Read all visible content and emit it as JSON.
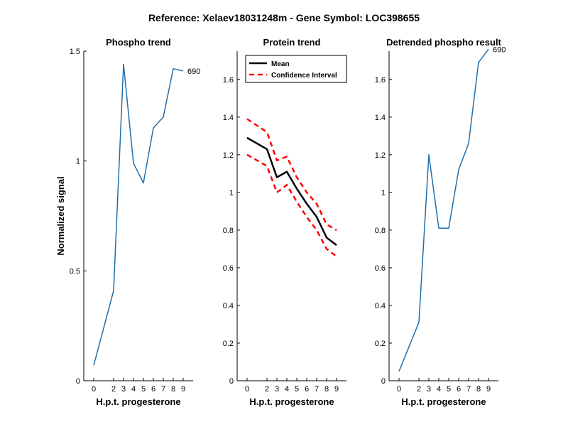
{
  "figure": {
    "title": "Reference:  Xelaev18031248m - Gene Symbol:  LOC398655"
  },
  "chart_data": [
    {
      "type": "line",
      "title": "Phospho trend",
      "xlabel": "H.p.t. progesterone",
      "ylabel": "Normalized signal",
      "x": [
        0,
        2,
        3,
        4,
        5,
        6,
        7,
        8,
        9
      ],
      "x_tick_labels": [
        "0",
        "2",
        "3",
        "4",
        "5",
        "6",
        "7",
        "8",
        "9"
      ],
      "ylim": [
        0,
        1.5
      ],
      "y_ticks": [
        0,
        0.5,
        1,
        1.5
      ],
      "y_tick_labels": [
        "0",
        "0.5",
        "1",
        "1.5"
      ],
      "series": [
        {
          "name": "Phospho",
          "color": "#1f6fad",
          "values": [
            0.07,
            0.41,
            1.44,
            0.99,
            0.9,
            1.15,
            1.2,
            1.42,
            1.41
          ]
        }
      ],
      "annotation": {
        "text": "690",
        "x_index": 8
      }
    },
    {
      "type": "line",
      "title": "Protein trend",
      "xlabel": "H.p.t. progesterone",
      "ylabel": "",
      "x": [
        0,
        2,
        3,
        4,
        5,
        6,
        7,
        8,
        9
      ],
      "x_tick_labels": [
        "0",
        "2",
        "3",
        "4",
        "5",
        "6",
        "7",
        "8",
        "9"
      ],
      "ylim": [
        0,
        1.75
      ],
      "y_ticks": [
        0,
        0.2,
        0.4,
        0.6,
        0.8,
        1,
        1.2,
        1.4,
        1.6
      ],
      "y_tick_labels": [
        "0",
        "0.2",
        "0.4",
        "0.6",
        "0.8",
        "1",
        "1.2",
        "1.4",
        "1.6"
      ],
      "legend_position": "top-left",
      "series": [
        {
          "name": "Mean",
          "color": "#000000",
          "style": "solid",
          "values": [
            1.29,
            1.23,
            1.08,
            1.11,
            1.02,
            0.94,
            0.87,
            0.76,
            0.72
          ]
        },
        {
          "name": "Confidence Interval",
          "color": "#ff0000",
          "style": "dashed",
          "values": [
            1.39,
            1.32,
            1.17,
            1.19,
            1.08,
            1.0,
            0.94,
            0.83,
            0.8
          ]
        },
        {
          "name": "Confidence Interval lower",
          "color": "#ff0000",
          "style": "dashed",
          "legend": false,
          "values": [
            1.2,
            1.14,
            1.0,
            1.04,
            0.95,
            0.87,
            0.8,
            0.7,
            0.66
          ]
        }
      ]
    },
    {
      "type": "line",
      "title": "Detrended phospho result",
      "xlabel": "H.p.t. progesterone",
      "ylabel": "",
      "x": [
        0,
        2,
        3,
        4,
        5,
        6,
        7,
        8,
        9
      ],
      "x_tick_labels": [
        "0",
        "2",
        "3",
        "4",
        "5",
        "6",
        "7",
        "8",
        "9"
      ],
      "ylim": [
        0,
        1.75
      ],
      "y_ticks": [
        0,
        0.2,
        0.4,
        0.6,
        0.8,
        1,
        1.2,
        1.4,
        1.6
      ],
      "y_tick_labels": [
        "0",
        "0.2",
        "0.4",
        "0.6",
        "0.8",
        "1",
        "1.2",
        "1.4",
        "1.6"
      ],
      "series": [
        {
          "name": "Detrended",
          "color": "#1f6fad",
          "values": [
            0.05,
            0.31,
            1.2,
            0.81,
            0.81,
            1.12,
            1.26,
            1.69,
            1.76
          ]
        }
      ],
      "annotation": {
        "text": "690",
        "x_index": 8
      }
    }
  ]
}
